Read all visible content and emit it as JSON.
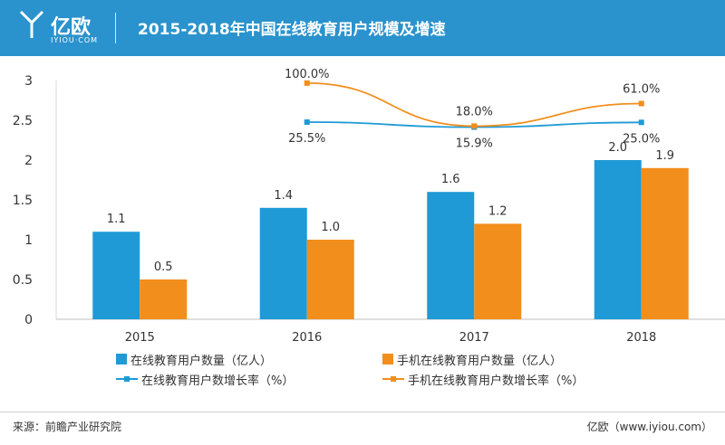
{
  "header": {
    "logo_text": "亿欧",
    "logo_sub": "IYIOU·COM",
    "title": "2015-2018年中国在线教育用户规模及增速"
  },
  "colors": {
    "header_bg": "#2a93cd",
    "series_blue": "#1f9ad6",
    "series_orange": "#f28e1c"
  },
  "chart_data": {
    "type": "bar",
    "categories": [
      "2015",
      "2016",
      "2017",
      "2018"
    ],
    "ylim": [
      0,
      3
    ],
    "yticks": [
      "0",
      "0.5",
      "1",
      "1.5",
      "2",
      "2.5",
      "3"
    ],
    "series": [
      {
        "name": "在线教育用户数量（亿人）",
        "values": [
          1.1,
          1.4,
          1.6,
          2.0
        ],
        "labels": [
          "1.1",
          "1.4",
          "1.6",
          "2.0"
        ]
      },
      {
        "name": "手机在线教育用户数量（亿人）",
        "values": [
          0.5,
          1.0,
          1.2,
          1.9
        ],
        "labels": [
          "0.5",
          "1.0",
          "1.2",
          "1.9"
        ]
      }
    ],
    "growth_lines": [
      {
        "name": "在线教育用户数增长率（%）",
        "categories": [
          "2016",
          "2017",
          "2018"
        ],
        "values": [
          25.5,
          15.9,
          25.0
        ],
        "labels": [
          "25.5%",
          "15.9%",
          "25.0%"
        ]
      },
      {
        "name": "手机在线教育用户数增长率（%）",
        "categories": [
          "2016",
          "2017",
          "2018"
        ],
        "values": [
          100.0,
          18.0,
          61.0
        ],
        "labels": [
          "100.0%",
          "18.0%",
          "61.0%"
        ]
      }
    ],
    "legend_position": "bottom"
  },
  "footer": {
    "source": "来源：前瞻产业研究院",
    "brand": "亿欧（www.iyiou.com）"
  }
}
